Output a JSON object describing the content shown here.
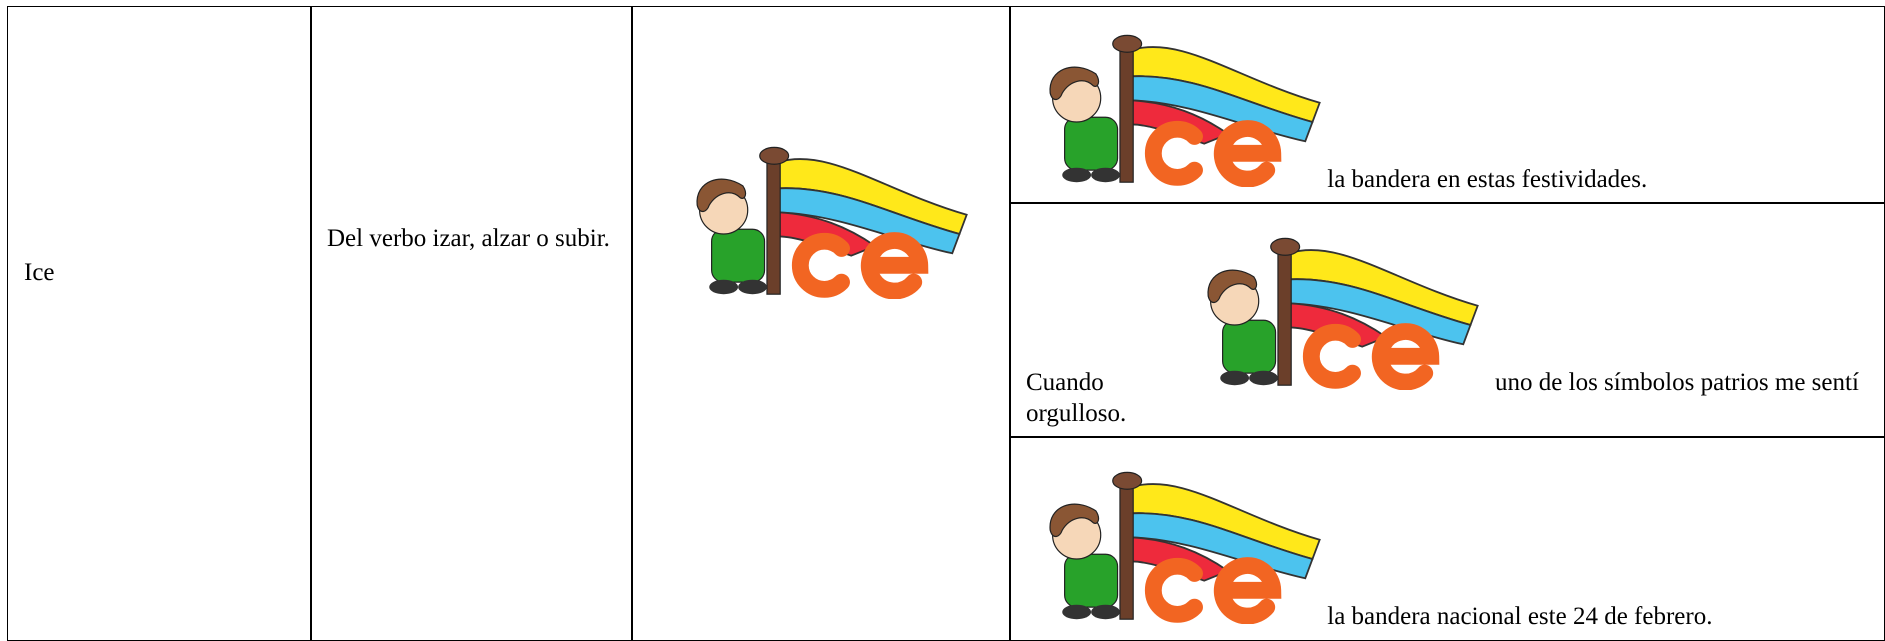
{
  "table": {
    "rows": [
      {
        "word": "Ice",
        "meaning": "Del verbo izar, alzar o subir.",
        "examples": [
          {
            "after": "la bandera en estas festividades."
          },
          {
            "before": "Cuando",
            "after": "uno de los símbolos patrios me sentí orgulloso."
          },
          {
            "after": "la bandera nacional este 24 de febrero."
          }
        ]
      }
    ]
  }
}
